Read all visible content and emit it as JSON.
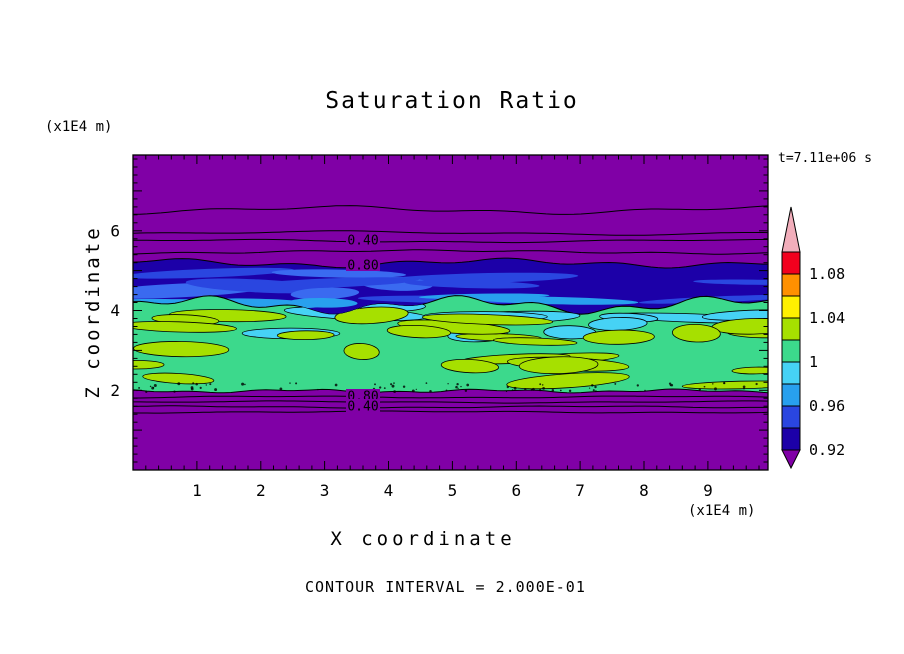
{
  "chart_data": {
    "type": "heatmap",
    "title": "Saturation Ratio",
    "timestamp": "t=7.11e+06 s",
    "xlabel": "X coordinate",
    "ylabel": "Z coordinate",
    "x_units_label": "(x1E4 m)",
    "y_units_label": "(x1E4 m)",
    "footer": "CONTOUR INTERVAL = 2.000E-01",
    "contour_interval": 0.2,
    "xlim": [
      0,
      9.9
    ],
    "ylim": [
      0,
      7.9
    ],
    "x_ticks": [
      1,
      2,
      3,
      4,
      5,
      6,
      7,
      8,
      9
    ],
    "y_ticks": [
      2,
      4,
      6
    ],
    "contour_line_labels": {
      "top": [
        "0.40",
        "0.80"
      ],
      "bottom": [
        "0.80",
        "0.40"
      ]
    },
    "colorbar": {
      "labels": [
        "1.08",
        "1.04",
        "1",
        "0.96",
        "0.92"
      ],
      "segments_top_to_bottom": [
        {
          "range": "above 1.10",
          "color": "#F2AEBB"
        },
        {
          "range": "1.08-1.10",
          "color": "#F2001E"
        },
        {
          "range": "1.06-1.08",
          "color": "#FF9000"
        },
        {
          "range": "1.04-1.06",
          "color": "#FFF000"
        },
        {
          "range": "1.02-1.04",
          "color": "#A6E000"
        },
        {
          "range": "1.00-1.02",
          "color": "#3CD98C"
        },
        {
          "range": "0.98-1.00",
          "color": "#46D2F5"
        },
        {
          "range": "0.96-0.98",
          "color": "#28A0EE"
        },
        {
          "range": "0.94-0.96",
          "color": "#2A46E0"
        },
        {
          "range": "0.92-0.94",
          "color": "#1C00A8"
        },
        {
          "range": "below 0.92",
          "color": "#8000A6"
        }
      ]
    },
    "field_bands": [
      {
        "z_range": [
          5.3,
          7.9
        ],
        "color": "#8000A6",
        "note": "low-value background crossed by 0.40 and 0.80 contour lines"
      },
      {
        "z_range": [
          4.2,
          5.3
        ],
        "color": "#1C00A8",
        "note": "0.92-0.96 dark blue band with brighter blue streaks"
      },
      {
        "z_range": [
          2.0,
          4.2
        ],
        "color": "#3CD98C",
        "note": "mottled 0.96-1.04 band with chartreuse and cyan patches"
      },
      {
        "z_range": [
          0,
          2.0
        ],
        "color": "#8000A6",
        "note": "low-value background crossed by 0.80 and 0.40 contour lines"
      }
    ]
  }
}
